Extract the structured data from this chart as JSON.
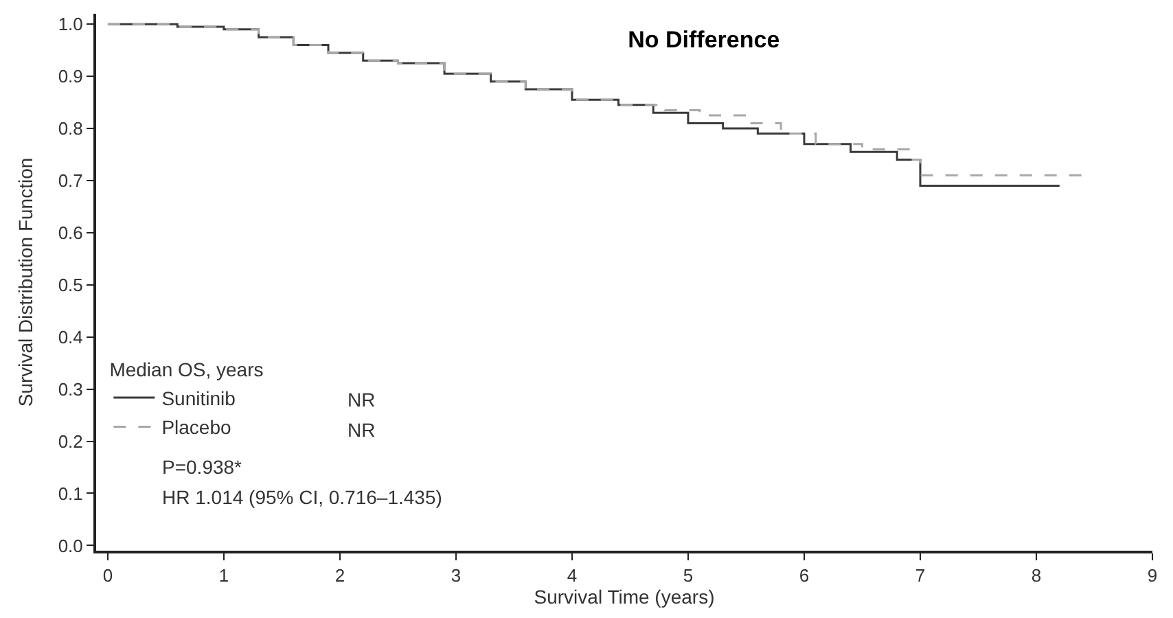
{
  "chart_data": {
    "type": "step",
    "title": "No Difference",
    "xlabel": "Survival Time (years)",
    "ylabel": "Survival Distribution Function",
    "legend_title": "Median OS, years",
    "series": [
      {
        "name": "Sunitinib",
        "color": "#3a3a3a",
        "line_style": "solid",
        "x": [
          0,
          0.6,
          1.0,
          1.3,
          1.6,
          1.9,
          2.2,
          2.5,
          2.9,
          3.3,
          3.6,
          4.0,
          4.4,
          4.7,
          5.0,
          5.3,
          5.6,
          6.0,
          6.4,
          6.8,
          7.0,
          8.2
        ],
        "values": [
          1.0,
          0.995,
          0.99,
          0.975,
          0.96,
          0.945,
          0.93,
          0.925,
          0.905,
          0.89,
          0.875,
          0.855,
          0.845,
          0.83,
          0.81,
          0.8,
          0.79,
          0.77,
          0.755,
          0.74,
          0.69,
          0.69
        ]
      },
      {
        "name": "Placebo",
        "color": "#a8a8a8",
        "line_style": "dashed",
        "x": [
          0,
          0.6,
          1.0,
          1.3,
          1.6,
          1.9,
          2.2,
          2.5,
          2.9,
          3.3,
          3.6,
          4.0,
          4.4,
          4.8,
          5.1,
          5.5,
          5.8,
          6.1,
          6.5,
          6.9,
          7.0,
          8.4
        ],
        "values": [
          1.0,
          0.995,
          0.99,
          0.975,
          0.96,
          0.945,
          0.93,
          0.925,
          0.905,
          0.89,
          0.875,
          0.855,
          0.845,
          0.835,
          0.825,
          0.81,
          0.79,
          0.77,
          0.76,
          0.74,
          0.71,
          0.71
        ]
      }
    ],
    "annotations": [
      "NR",
      "NR",
      "P=0.938*",
      "HR 1.014 (95% CI, 0.716–1.435)"
    ],
    "xlim": [
      -0.1,
      9
    ],
    "xticks": [
      0,
      1,
      2,
      3,
      4,
      5,
      6,
      7,
      8,
      9
    ],
    "ylim": [
      -0.01,
      1.02
    ],
    "yticks": [
      {
        "value": 0,
        "label": "0.0"
      },
      0.1,
      0.2,
      0.3,
      0.4,
      0.5,
      0.6,
      0.7,
      0.8,
      0.9,
      {
        "value": 1,
        "label": "1.0"
      }
    ],
    "legend": "bottom left",
    "marker": "none"
  }
}
